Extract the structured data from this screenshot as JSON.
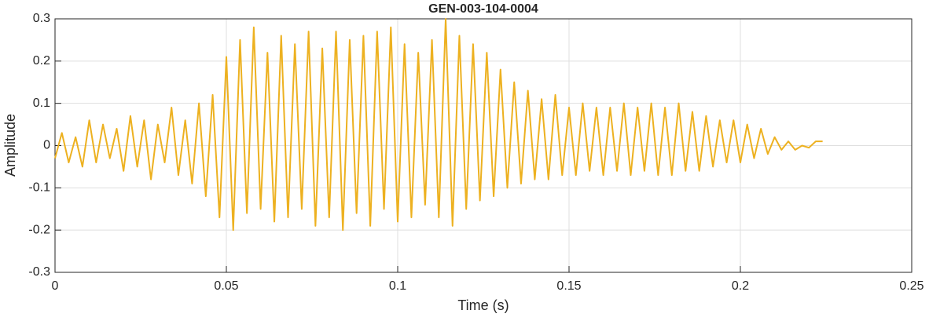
{
  "chart_data": {
    "type": "line",
    "title": "GEN-003-104-0004",
    "xlabel": "Time (s)",
    "ylabel": "Amplitude",
    "x": [
      0,
      0.002,
      0.004,
      0.006,
      0.008,
      0.01,
      0.012,
      0.014,
      0.016,
      0.018,
      0.02,
      0.022,
      0.024,
      0.026,
      0.028,
      0.03,
      0.032,
      0.034,
      0.036,
      0.038,
      0.04,
      0.042,
      0.044,
      0.046,
      0.048,
      0.05,
      0.052,
      0.054,
      0.056,
      0.058,
      0.06,
      0.062,
      0.064,
      0.066,
      0.068,
      0.07,
      0.072,
      0.074,
      0.076,
      0.078,
      0.08,
      0.082,
      0.084,
      0.086,
      0.088,
      0.09,
      0.092,
      0.094,
      0.096,
      0.098,
      0.1,
      0.102,
      0.104,
      0.106,
      0.108,
      0.11,
      0.112,
      0.114,
      0.116,
      0.118,
      0.12,
      0.122,
      0.124,
      0.126,
      0.128,
      0.13,
      0.132,
      0.134,
      0.136,
      0.138,
      0.14,
      0.142,
      0.144,
      0.146,
      0.148,
      0.15,
      0.152,
      0.154,
      0.156,
      0.158,
      0.16,
      0.162,
      0.164,
      0.166,
      0.168,
      0.17,
      0.172,
      0.174,
      0.176,
      0.178,
      0.18,
      0.182,
      0.184,
      0.186,
      0.188,
      0.19,
      0.192,
      0.194,
      0.196,
      0.198,
      0.2,
      0.202,
      0.204,
      0.206,
      0.208,
      0.21,
      0.212,
      0.214,
      0.216,
      0.218,
      0.22,
      0.222,
      0.224
    ],
    "series": [
      {
        "name": "Amplitude",
        "color": "#EDB120",
        "values": [
          -0.03,
          0.03,
          -0.04,
          0.02,
          -0.05,
          0.06,
          -0.04,
          0.05,
          -0.03,
          0.04,
          -0.06,
          0.07,
          -0.05,
          0.06,
          -0.08,
          0.05,
          -0.04,
          0.09,
          -0.07,
          0.06,
          -0.09,
          0.1,
          -0.12,
          0.12,
          -0.17,
          0.21,
          -0.2,
          0.25,
          -0.16,
          0.28,
          -0.15,
          0.22,
          -0.18,
          0.26,
          -0.17,
          0.24,
          -0.15,
          0.27,
          -0.19,
          0.23,
          -0.17,
          0.27,
          -0.2,
          0.25,
          -0.16,
          0.26,
          -0.19,
          0.27,
          -0.15,
          0.28,
          -0.18,
          0.24,
          -0.17,
          0.22,
          -0.14,
          0.25,
          -0.17,
          0.3,
          -0.19,
          0.26,
          -0.15,
          0.24,
          -0.13,
          0.22,
          -0.12,
          0.18,
          -0.1,
          0.15,
          -0.09,
          0.13,
          -0.08,
          0.11,
          -0.08,
          0.12,
          -0.07,
          0.09,
          -0.07,
          0.1,
          -0.06,
          0.09,
          -0.07,
          0.09,
          -0.06,
          0.1,
          -0.07,
          0.09,
          -0.06,
          0.1,
          -0.07,
          0.09,
          -0.07,
          0.1,
          -0.06,
          0.08,
          -0.06,
          0.07,
          -0.05,
          0.06,
          -0.04,
          0.06,
          -0.04,
          0.05,
          -0.03,
          0.04,
          -0.02,
          0.02,
          -0.01,
          0.01,
          -0.01,
          0.0,
          -0.005,
          0.01,
          0.01
        ]
      }
    ],
    "xlim": [
      0,
      0.25
    ],
    "xticks": [
      0,
      0.05,
      0.1,
      0.15,
      0.2,
      0.25
    ],
    "ylim": [
      -0.3,
      0.3
    ],
    "yticks": [
      -0.3,
      -0.2,
      -0.1,
      0,
      0.1,
      0.2,
      0.3
    ],
    "grid": true
  }
}
